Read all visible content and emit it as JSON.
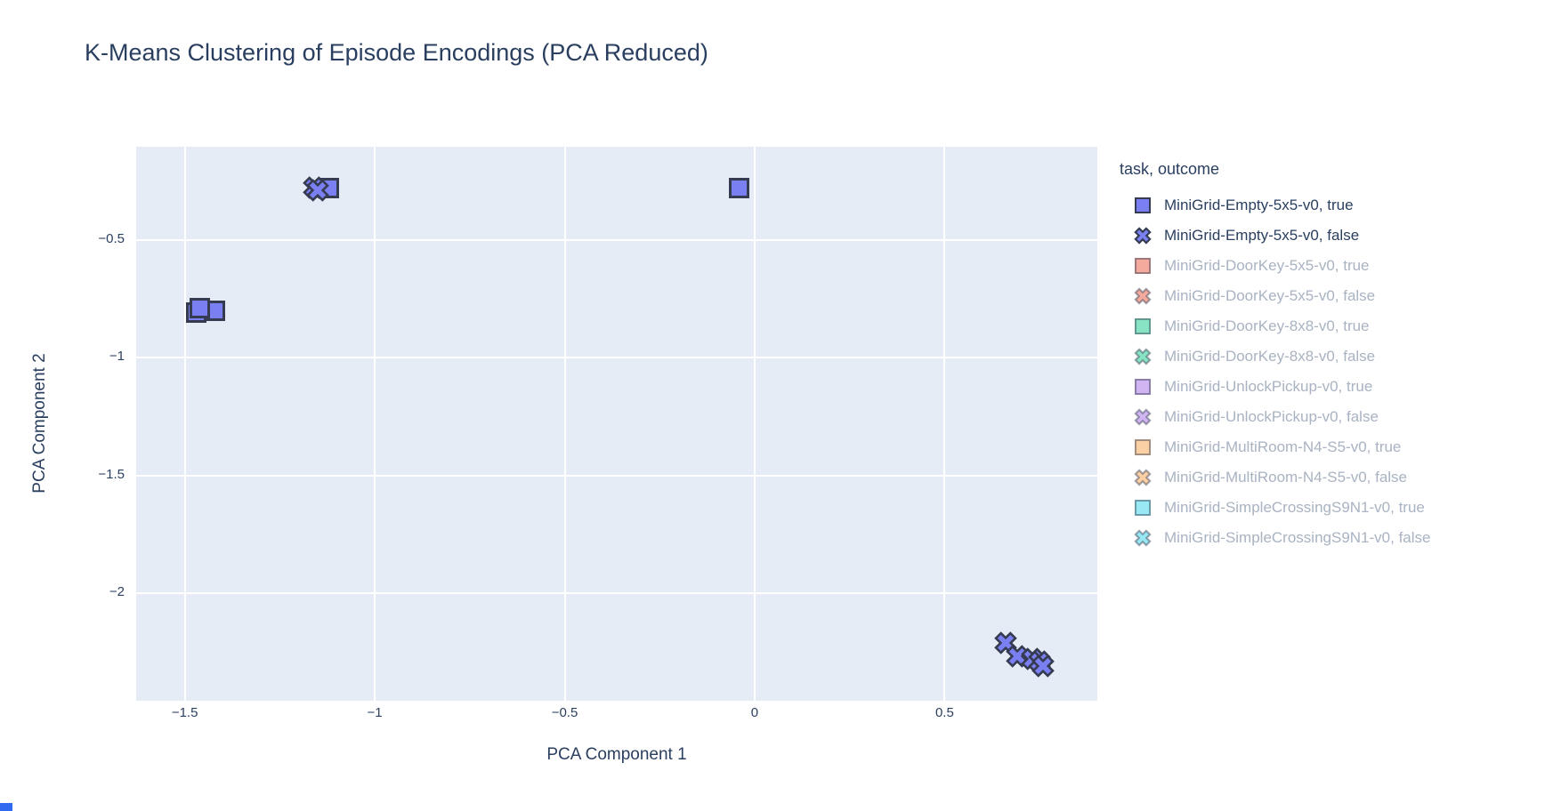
{
  "title": "K-Means Clustering of Episode Encodings (PCA Reduced)",
  "colors": {
    "title_text": "#2a3f5f",
    "axis_text": "#2a3f5f",
    "legend_active_text": "#2a3f5f",
    "legend_inactive_text": "#a9b3c2",
    "plot_bg": "#e5ecf6",
    "gridline": "#ffffff",
    "marker_outline": "#353b50",
    "inactive_outline": "rgba(53,59,80,0.45)",
    "active_blue": "#7a80f2",
    "artifact_blue": "#2e6bf0"
  },
  "chart_data": {
    "type": "scatter",
    "title": "K-Means Clustering of Episode Encodings (PCA Reduced)",
    "xlabel": "PCA Component 1",
    "ylabel": "PCA Component 2",
    "xlim": [
      -1.628,
      0.902
    ],
    "ylim": [
      -2.457,
      -0.105
    ],
    "x_ticks": [
      -1.5,
      -1,
      -0.5,
      0,
      0.5
    ],
    "y_ticks": [
      -0.5,
      -1,
      -1.5,
      -2
    ],
    "grid": true,
    "legend_position": "right",
    "legend_title": "task, outcome",
    "series": [
      {
        "name": "MiniGrid-Empty-5x5-v0, true",
        "symbol": "square",
        "color": "#7a80f2",
        "active": true,
        "points": [
          [
            -1.47,
            -0.81
          ],
          [
            -1.42,
            -0.8
          ],
          [
            -1.46,
            -0.79
          ],
          [
            -1.12,
            -0.28
          ],
          [
            -0.04,
            -0.28
          ]
        ]
      },
      {
        "name": "MiniGrid-Empty-5x5-v0, false",
        "symbol": "x",
        "color": "#7a80f2",
        "active": true,
        "points": [
          [
            -1.16,
            -0.28
          ],
          [
            -1.15,
            -0.29
          ],
          [
            0.66,
            -2.21
          ],
          [
            0.69,
            -2.27
          ],
          [
            0.73,
            -2.28
          ],
          [
            0.75,
            -2.29
          ],
          [
            0.76,
            -2.31
          ]
        ]
      },
      {
        "name": "MiniGrid-DoorKey-5x5-v0, true",
        "symbol": "square",
        "color": "#f4ab9e",
        "active": false,
        "points": []
      },
      {
        "name": "MiniGrid-DoorKey-5x5-v0, false",
        "symbol": "x",
        "color": "#f4ab9e",
        "active": false,
        "points": []
      },
      {
        "name": "MiniGrid-DoorKey-8x8-v0, true",
        "symbol": "square",
        "color": "#87e3c4",
        "active": false,
        "points": []
      },
      {
        "name": "MiniGrid-DoorKey-8x8-v0, false",
        "symbol": "x",
        "color": "#87e3c4",
        "active": false,
        "points": []
      },
      {
        "name": "MiniGrid-UnlockPickup-v0, true",
        "symbol": "square",
        "color": "#d0b5f2",
        "active": false,
        "points": []
      },
      {
        "name": "MiniGrid-UnlockPickup-v0, false",
        "symbol": "x",
        "color": "#d0b5f2",
        "active": false,
        "points": []
      },
      {
        "name": "MiniGrid-MultiRoom-N4-S5-v0, true",
        "symbol": "square",
        "color": "#fcd0a5",
        "active": false,
        "points": []
      },
      {
        "name": "MiniGrid-MultiRoom-N4-S5-v0, false",
        "symbol": "x",
        "color": "#fcd0a5",
        "active": false,
        "points": []
      },
      {
        "name": "MiniGrid-SimpleCrossingS9N1-v0, true",
        "symbol": "square",
        "color": "#99e8f5",
        "active": false,
        "points": []
      },
      {
        "name": "MiniGrid-SimpleCrossingS9N1-v0, false",
        "symbol": "x",
        "color": "#99e8f5",
        "active": false,
        "points": []
      }
    ]
  }
}
